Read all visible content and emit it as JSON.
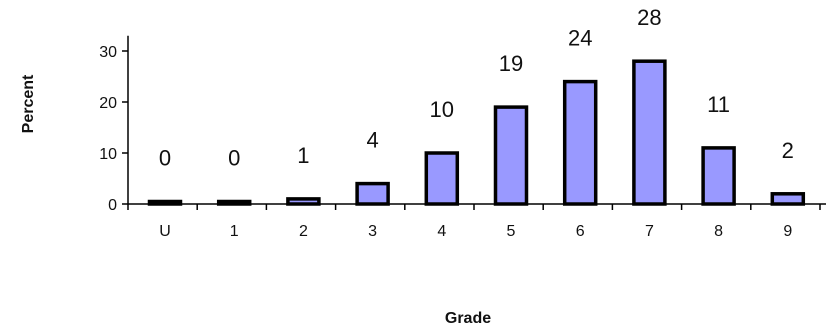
{
  "chart_data": {
    "type": "bar",
    "title": "",
    "xlabel": "Grade",
    "ylabel": "Percent",
    "categories": [
      "U",
      "1",
      "2",
      "3",
      "4",
      "5",
      "6",
      "7",
      "8",
      "9"
    ],
    "values": [
      0,
      0,
      1,
      4,
      10,
      19,
      24,
      28,
      11,
      2
    ],
    "data_labels": [
      "0",
      "0",
      "1",
      "4",
      "10",
      "19",
      "24",
      "28",
      "11",
      "2"
    ],
    "yticks": [
      0,
      10,
      20,
      30
    ],
    "ylim": [
      0,
      33
    ],
    "grid": false,
    "legend": "none",
    "bar_color": "#9999ff",
    "bar_edge_color": "#000000"
  }
}
